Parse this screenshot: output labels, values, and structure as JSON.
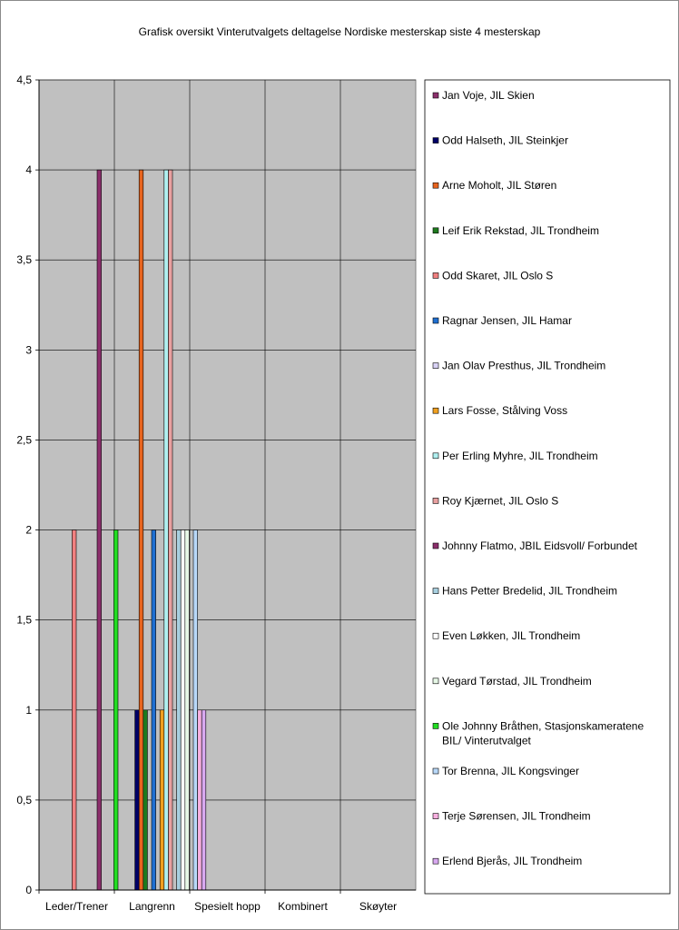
{
  "chart_data": {
    "type": "bar",
    "title": "Grafisk oversikt Vinterutvalgets deltagelse Nordiske mesterskap siste 4 mesterskap",
    "xlabel": "",
    "ylabel": "",
    "ylim": [
      0,
      4.5
    ],
    "yticks": [
      "0",
      "0,5",
      "1",
      "1,5",
      "2",
      "2,5",
      "3",
      "3,5",
      "4",
      "4,5"
    ],
    "grid": true,
    "legend_position": "right",
    "categories": [
      "Leder/Trener",
      "Langrenn",
      "Spesielt hopp",
      "Kombinert",
      "Skøyter"
    ],
    "series": [
      {
        "name": "Jan Voje, JIL Skien",
        "color": "#8b2f6b",
        "values": [
          0,
          0,
          0,
          0,
          0
        ]
      },
      {
        "name": "Odd Halseth, JIL Steinkjer",
        "color": "#000066",
        "values": [
          0,
          1,
          0,
          0,
          0
        ]
      },
      {
        "name": "Arne Moholt, JIL Støren",
        "color": "#e8641e",
        "values": [
          0,
          4,
          0,
          0,
          0
        ]
      },
      {
        "name": "Leif Erik Rekstad, JIL Trondheim",
        "color": "#1e7a1e",
        "values": [
          0,
          1,
          0,
          0,
          0
        ]
      },
      {
        "name": "Odd Skaret, JIL Oslo S",
        "color": "#f08080",
        "values": [
          2,
          0,
          0,
          0,
          0
        ]
      },
      {
        "name": "Ragnar Jensen, JIL Hamar",
        "color": "#1f6fd1",
        "values": [
          0,
          2,
          0,
          0,
          0
        ]
      },
      {
        "name": "Jan Olav Presthus, JIL Trondheim",
        "color": "#d9d2f5",
        "values": [
          0,
          0,
          0,
          0,
          0
        ]
      },
      {
        "name": "Lars Fosse, Stålving Voss",
        "color": "#f0a020",
        "values": [
          0,
          1,
          0,
          0,
          0
        ]
      },
      {
        "name": "Per Erling Myhre, JIL Trondheim",
        "color": "#b0f0f0",
        "values": [
          0,
          4,
          0,
          0,
          0
        ]
      },
      {
        "name": "Roy Kjærnet, JIL Oslo S",
        "color": "#e8a0a0",
        "values": [
          0,
          4,
          0,
          0,
          0
        ]
      },
      {
        "name": "Johnny Flatmo, JBIL Eidsvoll/ Forbundet",
        "color": "#8b2f6b",
        "values": [
          4,
          0,
          0,
          0,
          0
        ]
      },
      {
        "name": "Hans Petter Bredelid, JIL Trondheim",
        "color": "#a8d0e0",
        "values": [
          0,
          2,
          0,
          0,
          0
        ]
      },
      {
        "name": "Even Løkken, JIL Trondheim",
        "color": "#ffffff",
        "values": [
          0,
          2,
          0,
          0,
          0
        ]
      },
      {
        "name": "Vegard Tørstad, JIL Trondheim",
        "color": "#e6f7e6",
        "values": [
          0,
          2,
          0,
          0,
          0
        ]
      },
      {
        "name": "Ole Johnny Bråthen, Stasjonskameratene BIL/ Vinterutvalget",
        "color": "#22dd22",
        "values": [
          2,
          0,
          0,
          0,
          0
        ]
      },
      {
        "name": "Tor Brenna, JIL Kongsvinger",
        "color": "#b8d8f8",
        "values": [
          0,
          2,
          0,
          0,
          0
        ]
      },
      {
        "name": "Terje Sørensen, JIL Trondheim",
        "color": "#f8b0e0",
        "values": [
          0,
          1,
          0,
          0,
          0
        ]
      },
      {
        "name": "Erlend Bjerås, JIL Trondheim",
        "color": "#d8a8f0",
        "values": [
          0,
          1,
          0,
          0,
          0
        ]
      }
    ],
    "colors": {
      "plot_background": "#c0c0c0",
      "gridline": "#000000",
      "frame_border": "#8a8a8a"
    }
  }
}
